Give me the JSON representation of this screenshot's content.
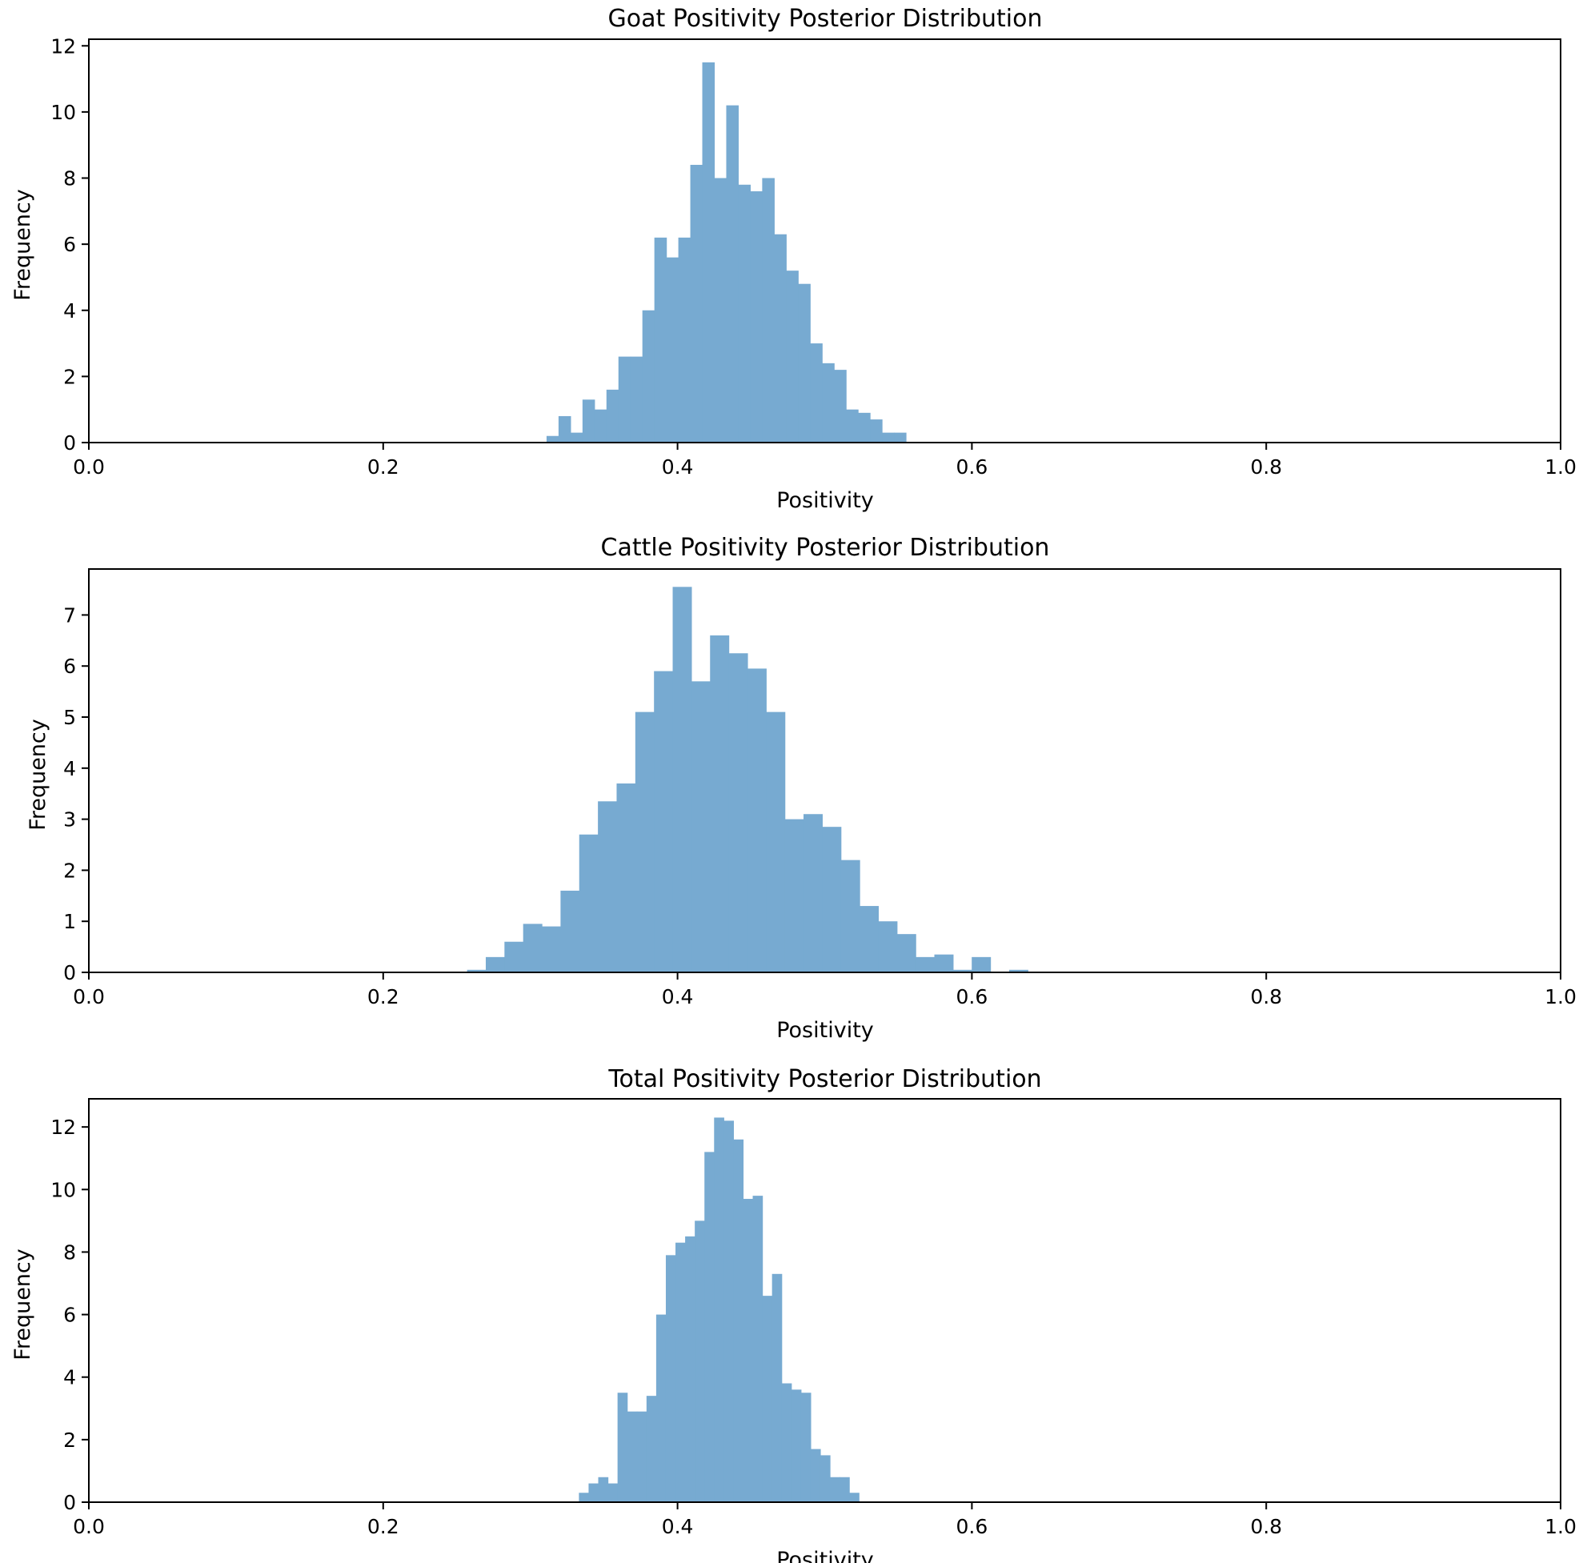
{
  "chart_data": [
    {
      "type": "bar",
      "title": "Goat Positivity Posterior Distribution",
      "xlabel": "Positivity",
      "ylabel": "Frequency",
      "xlim": [
        0.0,
        1.0
      ],
      "ylim": [
        0,
        12.2
      ],
      "xticks": [
        "0.0",
        "0.2",
        "0.4",
        "0.6",
        "0.8",
        "1.0"
      ],
      "yticks": [
        "0",
        "2",
        "4",
        "6",
        "8",
        "10",
        "12"
      ],
      "grid": false,
      "bar_color": "#77aad1",
      "bins": {
        "start": 0.311,
        "width": 0.00814,
        "values": [
          0.2,
          0.8,
          0.3,
          1.3,
          1.0,
          1.6,
          2.6,
          2.6,
          4.0,
          6.2,
          5.6,
          6.2,
          8.4,
          11.5,
          8.0,
          10.2,
          7.8,
          7.6,
          8.0,
          6.3,
          5.2,
          4.8,
          3.0,
          2.4,
          2.2,
          1.0,
          0.9,
          0.7,
          0.3,
          0.3
        ]
      }
    },
    {
      "type": "bar",
      "title": "Cattle Positivity Posterior Distribution",
      "xlabel": "Positivity",
      "ylabel": "Frequency",
      "xlim": [
        0.0,
        1.0
      ],
      "ylim": [
        0,
        7.9
      ],
      "xticks": [
        "0.0",
        "0.2",
        "0.4",
        "0.6",
        "0.8",
        "1.0"
      ],
      "yticks": [
        "0",
        "1",
        "2",
        "3",
        "4",
        "5",
        "6",
        "7"
      ],
      "grid": false,
      "bar_color": "#77aad1",
      "bins": {
        "start": 0.257,
        "width": 0.0127,
        "values": [
          0.05,
          0.3,
          0.6,
          0.95,
          0.9,
          1.6,
          2.7,
          3.35,
          3.7,
          5.1,
          5.9,
          7.55,
          5.7,
          6.6,
          6.25,
          5.95,
          5.1,
          3.0,
          3.1,
          2.85,
          2.2,
          1.3,
          1.0,
          0.75,
          0.3,
          0.35,
          0.05,
          0.3,
          0.0,
          0.05
        ]
      }
    },
    {
      "type": "bar",
      "title": "Total Positivity Posterior Distribution",
      "xlabel": "Positivity",
      "ylabel": "Frequency",
      "xlim": [
        0.0,
        1.0
      ],
      "ylim": [
        0,
        12.9
      ],
      "xticks": [
        "0.0",
        "0.2",
        "0.4",
        "0.6",
        "0.8",
        "1.0"
      ],
      "yticks": [
        "0",
        "2",
        "4",
        "6",
        "8",
        "10",
        "12"
      ],
      "grid": false,
      "bar_color": "#77aad1",
      "bins": {
        "start": 0.333,
        "width": 0.00656,
        "values": [
          0.3,
          0.6,
          0.8,
          0.6,
          3.5,
          2.9,
          2.9,
          3.4,
          6.0,
          7.9,
          8.3,
          8.5,
          9.0,
          11.2,
          12.3,
          12.2,
          11.6,
          9.7,
          9.8,
          6.6,
          7.3,
          3.8,
          3.6,
          3.5,
          1.7,
          1.5,
          0.8,
          0.8,
          0.3
        ]
      }
    }
  ]
}
